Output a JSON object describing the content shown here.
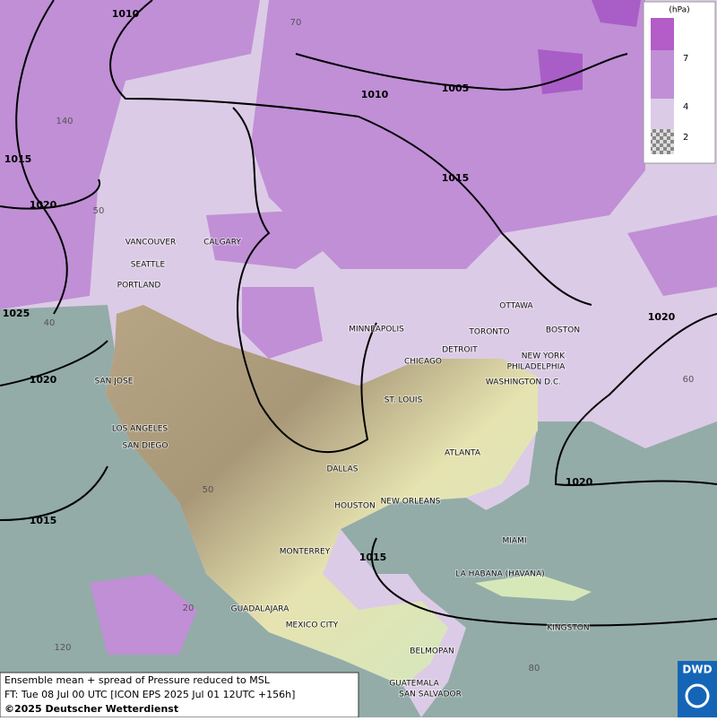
{
  "legend": {
    "unit": "(hPa)",
    "levels": [
      7,
      4,
      2
    ]
  },
  "isobar_labels": [
    1010,
    1010,
    1005,
    1015,
    1015,
    1020,
    1025,
    1020,
    1020,
    1020,
    1015,
    1015
  ],
  "graticule_labels": [
    70,
    140,
    50,
    40,
    60,
    50,
    20,
    120,
    80
  ],
  "cities": [
    "VANCOUVER",
    "CALGARY",
    "SEATTLE",
    "PORTLAND",
    "MINNEAPOLIS",
    "TORONTO",
    "OTTAWA",
    "BOSTON",
    "DETROIT",
    "CHICAGO",
    "NEW YORK",
    "PHILADELPHIA",
    "WASHINGTON D.C.",
    "ST. LOUIS",
    "SAN JOSE",
    "LOS ANGELES",
    "SAN DIEGO",
    "DALLAS",
    "ATLANTA",
    "HOUSTON",
    "NEW ORLEANS",
    "MIAMI",
    "MONTERREY",
    "LA HABANA (HAVANA)",
    "GUADALAJARA",
    "MEXICO CITY",
    "KINGSTON",
    "BELMOPAN",
    "GUATEMALA",
    "SAN SALVADOR"
  ],
  "footer": {
    "title": "Ensemble mean + spread of Pressure reduced to MSL",
    "forecast": "FT: Tue 08 Jul 00 UTC [ICON EPS 2025 Jul 01 12UTC +156h]",
    "copyright": "©2025 Deutscher Wetterdienst"
  },
  "logo": "DWD"
}
